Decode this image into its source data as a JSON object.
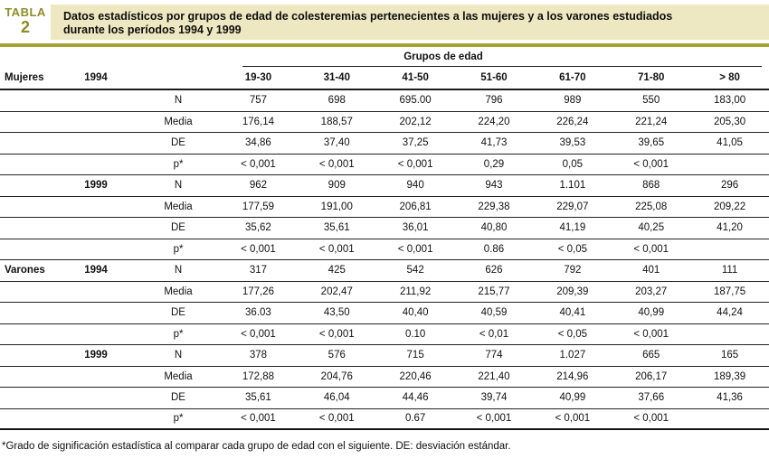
{
  "table_label": {
    "kicker": "TABLA",
    "number": "2"
  },
  "title": {
    "line1": "Datos estadísticos por grupos de edad de colesteremias pertenecientes a las mujeres y a los varones estudiados",
    "line2": "durante los períodos 1994 y 1999"
  },
  "colors": {
    "olive_text": "#8f8c23",
    "olive_rule": "#a6a233",
    "cream_band": "#eee8c2",
    "line_black": "#1c1c1c"
  },
  "table": {
    "group_header": "Grupos de edad",
    "header_row": {
      "group": "Mujeres",
      "year": "1994"
    },
    "age_groups": [
      "19-30",
      "31-40",
      "41-50",
      "51-60",
      "61-70",
      "71-80",
      "> 80"
    ],
    "rows": [
      {
        "group": "",
        "year": "",
        "stat": "N",
        "values": [
          "757",
          "698",
          "695.00",
          "796",
          "989",
          "550",
          "183,00"
        ]
      },
      {
        "group": "",
        "year": "",
        "stat": "Media",
        "values": [
          "176,14",
          "188,57",
          "202,12",
          "224,20",
          "226,24",
          "221,24",
          "205,30"
        ]
      },
      {
        "group": "",
        "year": "",
        "stat": "DE",
        "values": [
          "34,86",
          "37,40",
          "37,25",
          "41,73",
          "39,53",
          "39,65",
          "41,05"
        ]
      },
      {
        "group": "",
        "year": "",
        "stat": "p*",
        "values": [
          "< 0,001",
          "< 0,001",
          "< 0,001",
          "0,29",
          "0,05",
          "< 0,001",
          ""
        ]
      },
      {
        "group": "",
        "year": "1999",
        "stat": "N",
        "values": [
          "962",
          "909",
          "940",
          "943",
          "1.101",
          "868",
          "296"
        ]
      },
      {
        "group": "",
        "year": "",
        "stat": "Media",
        "values": [
          "177,59",
          "191,00",
          "206,81",
          "229,38",
          "229,07",
          "225,08",
          "209,22"
        ]
      },
      {
        "group": "",
        "year": "",
        "stat": "DE",
        "values": [
          "35,62",
          "35,61",
          "36,01",
          "40,80",
          "41,19",
          "40,25",
          "41,20"
        ]
      },
      {
        "group": "",
        "year": "",
        "stat": "p*",
        "values": [
          "< 0,001",
          "< 0,001",
          "< 0,001",
          "0.86",
          "< 0,05",
          "< 0,001",
          ""
        ]
      },
      {
        "group": "Varones",
        "year": "1994",
        "stat": "N",
        "values": [
          "317",
          "425",
          "542",
          "626",
          "792",
          "401",
          "111"
        ]
      },
      {
        "group": "",
        "year": "",
        "stat": "Media",
        "values": [
          "177,26",
          "202,47",
          "211,92",
          "215,77",
          "209,39",
          "203,27",
          "187,75"
        ]
      },
      {
        "group": "",
        "year": "",
        "stat": "DE",
        "values": [
          "36.03",
          "43,50",
          "40,40",
          "40,59",
          "40,41",
          "40,99",
          "44,24"
        ]
      },
      {
        "group": "",
        "year": "",
        "stat": "p*",
        "values": [
          "< 0,001",
          "< 0,001",
          "0.10",
          "< 0,01",
          "< 0,05",
          "< 0,001",
          ""
        ]
      },
      {
        "group": "",
        "year": "1999",
        "stat": "N",
        "values": [
          "378",
          "576",
          "715",
          "774",
          "1.027",
          "665",
          "165"
        ]
      },
      {
        "group": "",
        "year": "",
        "stat": "Media",
        "values": [
          "172,88",
          "204,76",
          "220,46",
          "221,40",
          "214,96",
          "206,17",
          "189,39"
        ]
      },
      {
        "group": "",
        "year": "",
        "stat": "DE",
        "values": [
          "35,61",
          "46,04",
          "44,46",
          "39,74",
          "40,99",
          "37,66",
          "41,36"
        ]
      },
      {
        "group": "",
        "year": "",
        "stat": "p*",
        "values": [
          "< 0,001",
          "< 0,001",
          "0.67",
          "< 0,001",
          "< 0,001",
          "< 0,001",
          ""
        ]
      }
    ]
  },
  "footnote": "*Grado de significación estadística al comparar cada grupo de edad con el siguiente. DE: desviación estándar."
}
